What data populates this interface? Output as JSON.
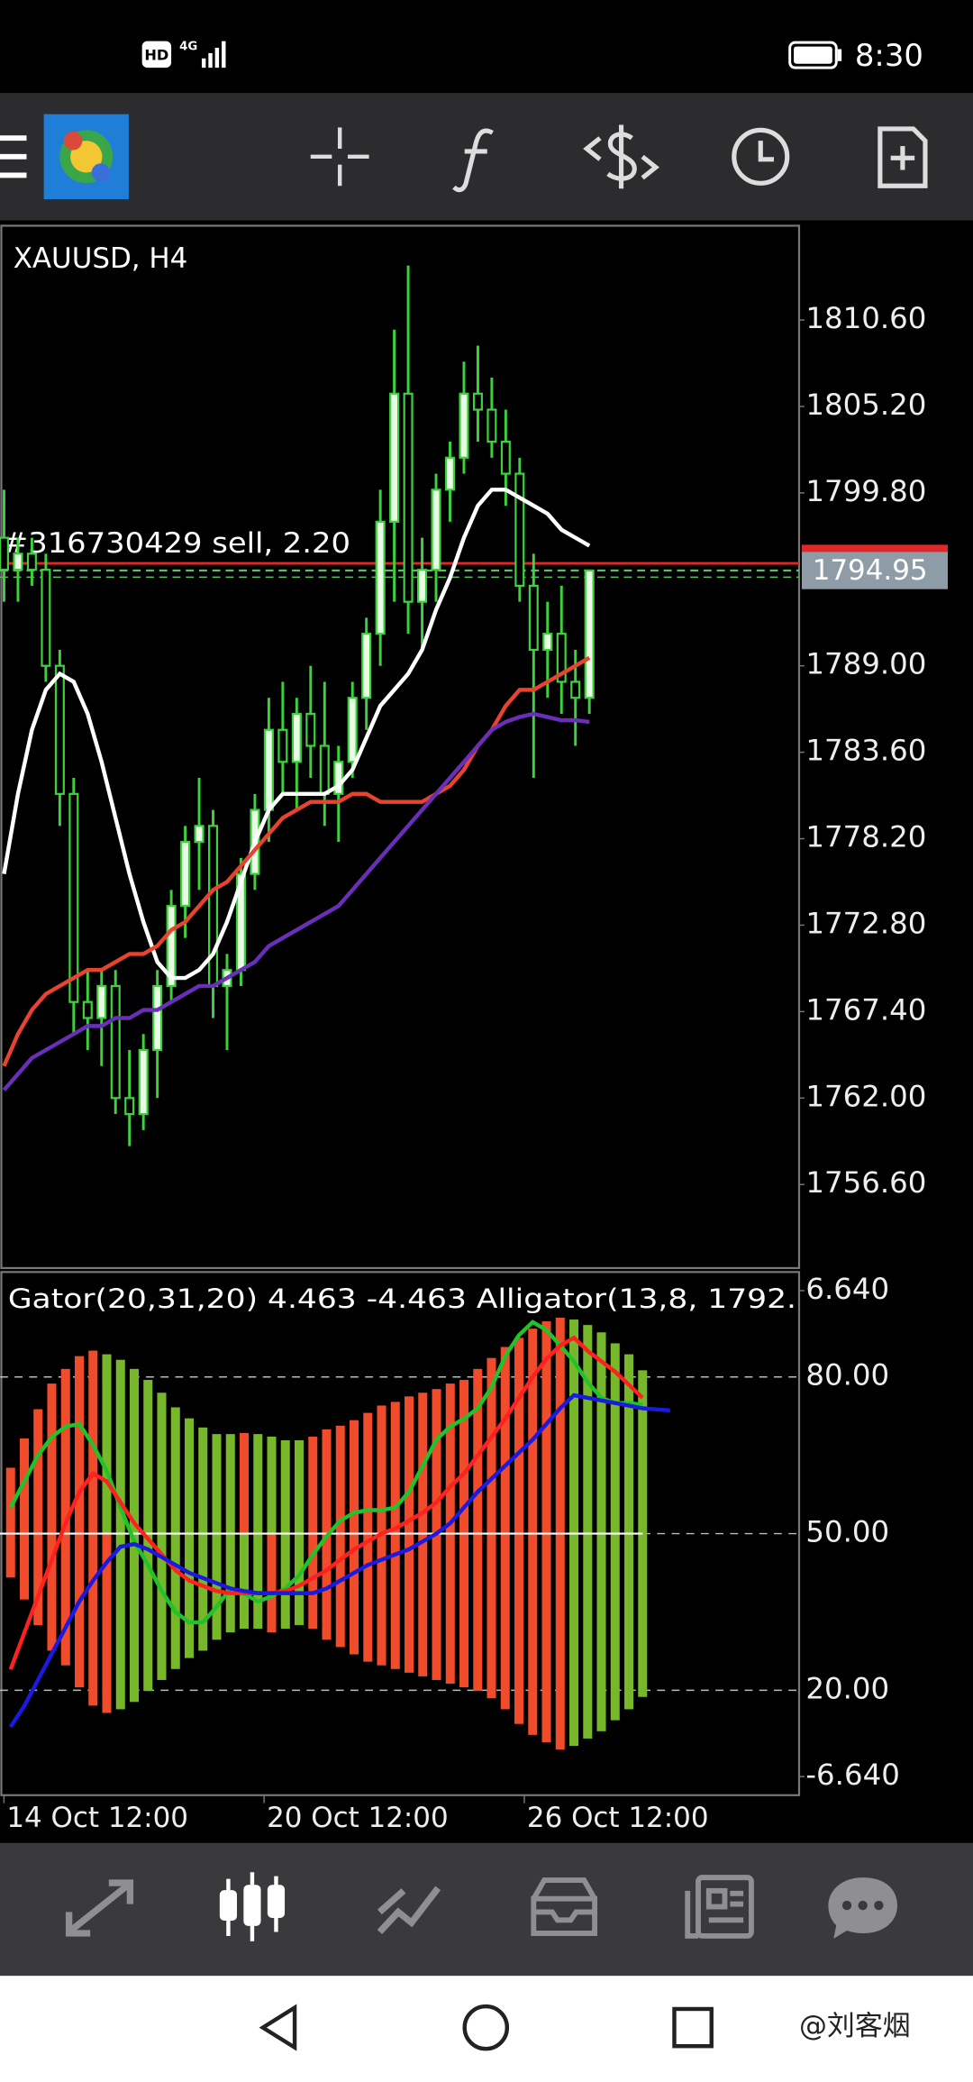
{
  "status_bar": {
    "network": "HD",
    "signal": "4G",
    "time": "8:30"
  },
  "watermark": "@刘客烟",
  "chart_data": [
    {
      "type": "candlestick",
      "title": "XAUUSD, H4",
      "open": [
        1797,
        1795,
        1796,
        1795,
        1789,
        1781,
        1768,
        1767,
        1769,
        1762,
        1761,
        1765,
        1769,
        1774,
        1778,
        1779,
        1769,
        1770,
        1776,
        1780,
        1785,
        1783,
        1786,
        1784,
        1781,
        1783,
        1787,
        1791,
        1798,
        1806,
        1793,
        1795,
        1800,
        1802,
        1806,
        1805,
        1803,
        1801,
        1794,
        1790,
        1791,
        1788,
        1787
      ],
      "high": [
        1800,
        1797,
        1797,
        1796,
        1790,
        1782,
        1770,
        1770,
        1770,
        1765,
        1766,
        1770,
        1775,
        1779,
        1782,
        1780,
        1771,
        1777,
        1781,
        1787,
        1788,
        1787,
        1789,
        1788,
        1784,
        1788,
        1792,
        1800,
        1810,
        1814,
        1797,
        1801,
        1803,
        1808,
        1809,
        1807,
        1805,
        1802,
        1796,
        1793,
        1794,
        1790,
        1795
      ],
      "low": [
        1793,
        1793,
        1794,
        1788,
        1779,
        1766,
        1765,
        1764,
        1761,
        1759,
        1760,
        1762,
        1768,
        1772,
        1775,
        1767,
        1765,
        1769,
        1775,
        1778,
        1781,
        1780,
        1782,
        1779,
        1778,
        1782,
        1785,
        1789,
        1793,
        1791,
        1790,
        1793,
        1798,
        1801,
        1803,
        1802,
        1799,
        1793,
        1782,
        1787,
        1786,
        1784,
        1786
      ],
      "close": [
        1795,
        1796,
        1795,
        1789,
        1781,
        1768,
        1767,
        1769,
        1762,
        1761,
        1765,
        1769,
        1774,
        1778,
        1779,
        1769,
        1770,
        1776,
        1780,
        1785,
        1783,
        1786,
        1784,
        1781,
        1783,
        1787,
        1791,
        1798,
        1806,
        1793,
        1795,
        1800,
        1802,
        1806,
        1805,
        1803,
        1801,
        1794,
        1790,
        1791,
        1788,
        1787,
        1794.95
      ],
      "up_color": "#e9fbe5",
      "down_color": "#000000",
      "wick_color": "#3dd13d",
      "series": [
        {
          "color": "#ffffff",
          "values": [
            1776,
            1781,
            1785,
            1787.5,
            1788.5,
            1788,
            1786,
            1783,
            1779.5,
            1776,
            1773,
            1770.5,
            1769.5,
            1769.5,
            1770,
            1771,
            1773,
            1775.5,
            1778,
            1780,
            1781,
            1781,
            1781,
            1781,
            1781.5,
            1782.5,
            1784.5,
            1786.5,
            1787.5,
            1788.5,
            1790,
            1792.5,
            1794.5,
            1797,
            1799,
            1800,
            1800,
            1799.5,
            1799,
            1798.5,
            1797.5,
            1797,
            1796.5
          ]
        },
        {
          "color": "#e8432e",
          "values": [
            1764,
            1766,
            1767.5,
            1768.5,
            1769,
            1769.5,
            1770,
            1770,
            1770.5,
            1771,
            1771,
            1771.5,
            1772.5,
            1773,
            1774,
            1775,
            1775.5,
            1776.5,
            1777.5,
            1778.5,
            1779.5,
            1780,
            1780.5,
            1780.5,
            1780.5,
            1781,
            1781,
            1780.5,
            1780.5,
            1780.5,
            1780.5,
            1781,
            1781.5,
            1782.5,
            1784,
            1785,
            1786.5,
            1787.5,
            1787.5,
            1788,
            1788.5,
            1789,
            1789.5
          ]
        },
        {
          "color": "#6a2fb8",
          "values": [
            1762.5,
            1763.5,
            1764.5,
            1765,
            1765.5,
            1766,
            1766.5,
            1766.5,
            1767,
            1767,
            1767.5,
            1767.5,
            1768,
            1768.5,
            1769,
            1769,
            1769.5,
            1770,
            1770.5,
            1771.5,
            1772,
            1772.5,
            1773,
            1773.5,
            1774,
            1775,
            1776,
            1777,
            1778,
            1779,
            1780,
            1781,
            1782,
            1783,
            1784,
            1785,
            1785.5,
            1785.8,
            1786,
            1785.8,
            1785.6,
            1785.6,
            1785.5
          ]
        }
      ],
      "order_line": {
        "label": "#316730429 sell, 2.20",
        "value": 1795.4,
        "color": "#e02828"
      },
      "current_price": 1794.95,
      "current_price_color": "#8d9ca6",
      "xlim": [
        -0.29,
        57.05
      ],
      "ylim": [
        1751.38,
        1816.49
      ],
      "yticks": [
        {
          "value": 1810.6,
          "label": "1810.60"
        },
        {
          "value": 1805.2,
          "label": "1805.20"
        },
        {
          "value": 1799.8,
          "label": "1799.80"
        },
        {
          "value": 1789,
          "label": "1789.00"
        },
        {
          "value": 1783.6,
          "label": "1783.60"
        },
        {
          "value": 1778.2,
          "label": "1778.20"
        },
        {
          "value": 1772.8,
          "label": "1772.80"
        },
        {
          "value": 1767.4,
          "label": "1767.40"
        },
        {
          "value": 1762,
          "label": "1762.00"
        },
        {
          "value": 1756.6,
          "label": "1756.60"
        }
      ]
    },
    {
      "type": "gator",
      "title": "Gator(20,31,20) 4.463 -4.463 Alligator(13,8, 1792.",
      "upper": [
        1.8,
        2.6,
        3.4,
        4.1,
        4.5,
        4.85,
        5.0,
        4.9,
        4.75,
        4.5,
        4.2,
        3.85,
        3.45,
        3.15,
        2.9,
        2.72,
        2.72,
        2.75,
        2.72,
        2.65,
        2.55,
        2.55,
        2.65,
        2.85,
        2.95,
        3.1,
        3.3,
        3.5,
        3.6,
        3.75,
        3.85,
        3.95,
        4.1,
        4.2,
        4.5,
        4.8,
        5.1,
        5.35,
        5.6,
        5.8,
        5.9,
        5.85,
        5.7,
        5.5,
        5.2,
        4.9,
        4.463
      ],
      "lower": [
        -1.2,
        -1.8,
        -2.5,
        -3.2,
        -3.6,
        -4.2,
        -4.7,
        -4.9,
        -4.8,
        -4.6,
        -4.3,
        -4.0,
        -3.7,
        -3.4,
        -3.2,
        -2.9,
        -2.7,
        -2.6,
        -2.6,
        -2.7,
        -2.6,
        -2.5,
        -2.6,
        -2.9,
        -3.1,
        -3.3,
        -3.5,
        -3.6,
        -3.7,
        -3.8,
        -3.9,
        -4.0,
        -4.1,
        -4.2,
        -4.3,
        -4.5,
        -4.8,
        -5.2,
        -5.5,
        -5.7,
        -5.9,
        -5.8,
        -5.6,
        -5.4,
        -5.1,
        -4.8,
        -4.463
      ],
      "growing_color": "#f04b2b",
      "shrinking_color": "#76b82a",
      "series": [
        {
          "color": "#22c22a",
          "axis": "y2",
          "values": [
            55,
            60,
            65,
            68.5,
            70.5,
            71,
            67,
            62,
            55,
            48.5,
            44,
            39,
            35,
            33,
            33,
            36,
            39.5,
            38.5,
            37,
            38,
            39.5,
            42,
            46,
            49.5,
            52.5,
            54,
            54.5,
            54.5,
            55,
            58,
            63,
            68,
            70.5,
            72,
            74,
            78,
            84,
            88,
            90.5,
            89,
            86,
            83,
            79,
            76,
            75,
            75,
            74.7,
            null,
            null
          ]
        },
        {
          "color": "#ff2020",
          "axis": "y2",
          "values": [
            24,
            31,
            38,
            45,
            52,
            58,
            61.5,
            60,
            56,
            52,
            49,
            46,
            43,
            41,
            40,
            39,
            38.6,
            38.6,
            38.6,
            38.6,
            39,
            40,
            41.5,
            43,
            45,
            47,
            48.5,
            50,
            51,
            52.5,
            54,
            56,
            59,
            61.5,
            65,
            68.5,
            72,
            76,
            80,
            83.5,
            86,
            87.5,
            85,
            83,
            81,
            78.5,
            76,
            null,
            null
          ]
        },
        {
          "color": "#1a1ae0",
          "axis": "y2",
          "values": [
            13,
            17,
            22,
            27,
            32,
            37,
            41,
            44.5,
            47.5,
            48,
            47,
            45.5,
            44,
            42.5,
            41.5,
            40.5,
            39.5,
            39,
            38.6,
            38.6,
            38.6,
            38.6,
            38.6,
            39.5,
            41,
            42.5,
            44,
            45,
            46,
            47,
            48.5,
            50,
            52,
            55,
            58,
            60.5,
            63,
            65.5,
            68,
            71,
            74,
            76.5,
            76,
            75.5,
            75,
            74.5,
            74,
            73.8,
            73.6
          ]
        }
      ],
      "xlim": [
        -0.77,
        57.39
      ],
      "xticks": [
        {
          "value": -0.48,
          "label": "14 Oct 12:00"
        },
        {
          "value": 18.45,
          "label": "20 Oct 12:00"
        },
        {
          "value": 37.39,
          "label": "26 Oct 12:00"
        }
      ],
      "ylim": [
        -6.64,
        6.64
      ],
      "yticks": [
        {
          "value": 6.64,
          "label": "6.640"
        },
        {
          "value": -6.64,
          "label": "-6.640"
        }
      ],
      "y2lim": [
        3.47,
        96.53
      ],
      "y2ticks": [
        {
          "value": 80,
          "label": "80.00"
        },
        {
          "value": 50,
          "label": "50.00"
        },
        {
          "value": 20,
          "label": "20.00"
        }
      ],
      "grid": true
    }
  ]
}
